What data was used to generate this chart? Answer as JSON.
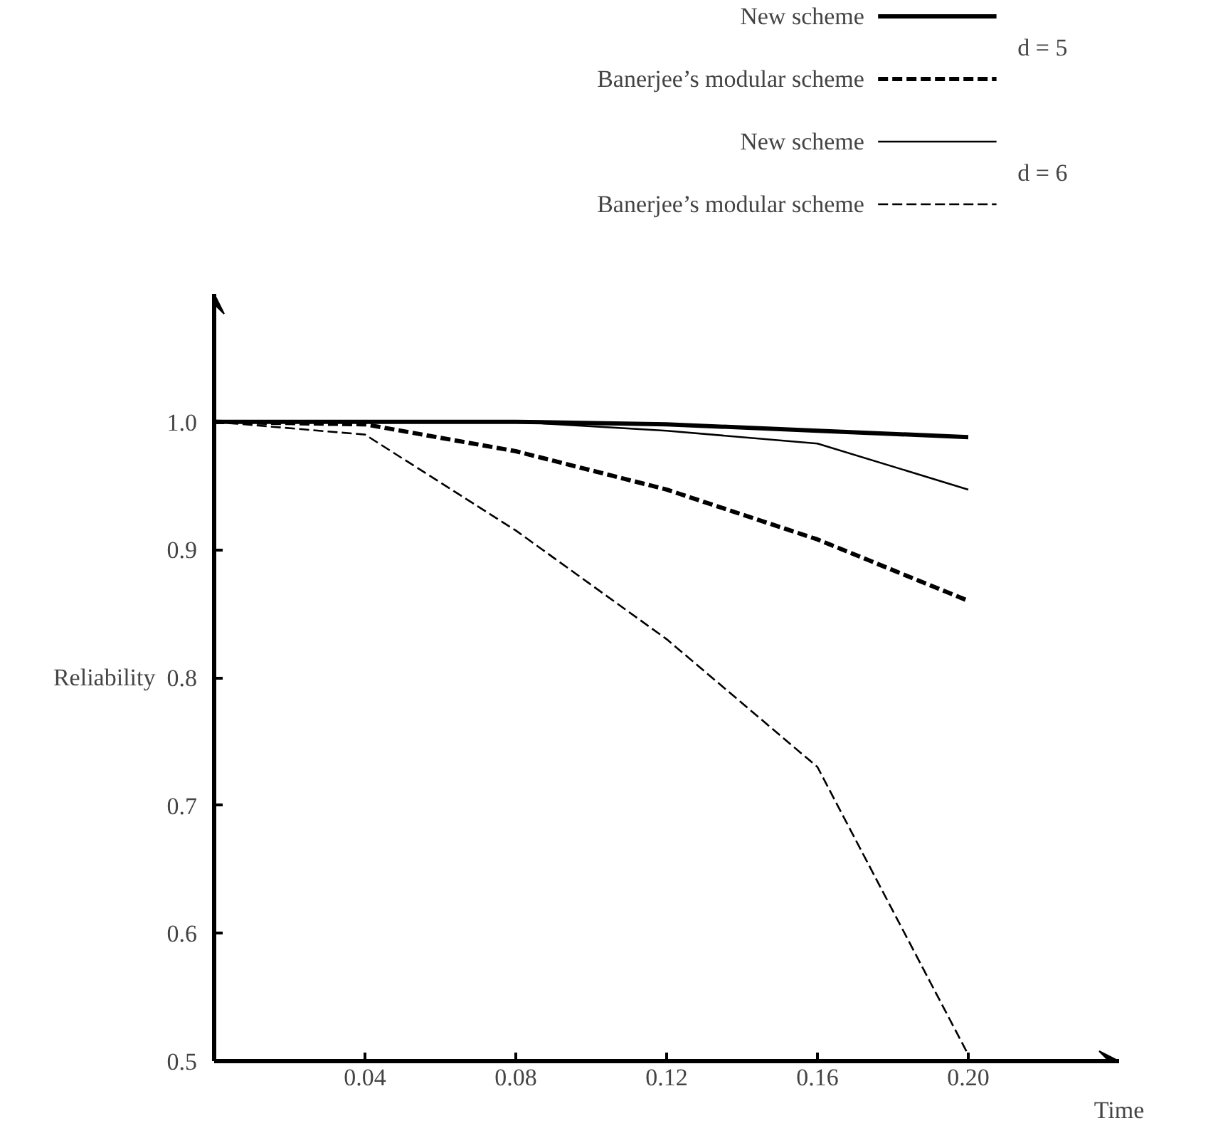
{
  "chart_data": {
    "type": "line",
    "xlabel": "Time",
    "ylabel": "Reliability",
    "x": [
      0,
      0.04,
      0.08,
      0.12,
      0.16,
      0.2
    ],
    "series": [
      {
        "name": "New scheme",
        "color": "#000000",
        "line_style": "solid",
        "values": [
          1.0,
          1.0,
          1.0,
          0.998,
          0.993,
          0.988
        ]
      },
      {
        "name": "Banerjee’s modular scheme",
        "color": "#000000",
        "line_style": "dashed",
        "values": [
          1.0,
          0.998,
          0.977,
          0.947,
          0.908,
          0.86
        ]
      },
      {
        "name": "New scheme",
        "color": "#000000",
        "line_style": "solid",
        "values": [
          1.0,
          1.0,
          1.0,
          0.993,
          0.983,
          0.947
        ]
      },
      {
        "name": "Banerjee’s modular scheme",
        "color": "#000000",
        "line_style": "dashed",
        "values": [
          1.0,
          0.99,
          0.915,
          0.83,
          0.73,
          0.505
        ]
      }
    ],
    "annotations": [
      "d = 5",
      "d = 6"
    ],
    "xlim": [
      0,
      0.24
    ],
    "ylim": [
      0.5,
      1.1
    ],
    "xticks": [
      {
        "value": 0.04,
        "label": "0.04"
      },
      {
        "value": 0.08,
        "label": "0.08"
      },
      {
        "value": 0.12,
        "label": "0.12"
      },
      {
        "value": 0.16,
        "label": "0.16"
      },
      {
        "value": 0.2,
        "label": "0.20"
      }
    ],
    "yticks": [
      0.5,
      0.6,
      0.7,
      0.8,
      0.9,
      {
        "value": 1.0,
        "label": "1.0"
      }
    ],
    "grid": false,
    "legend": "top",
    "marker": "none"
  }
}
